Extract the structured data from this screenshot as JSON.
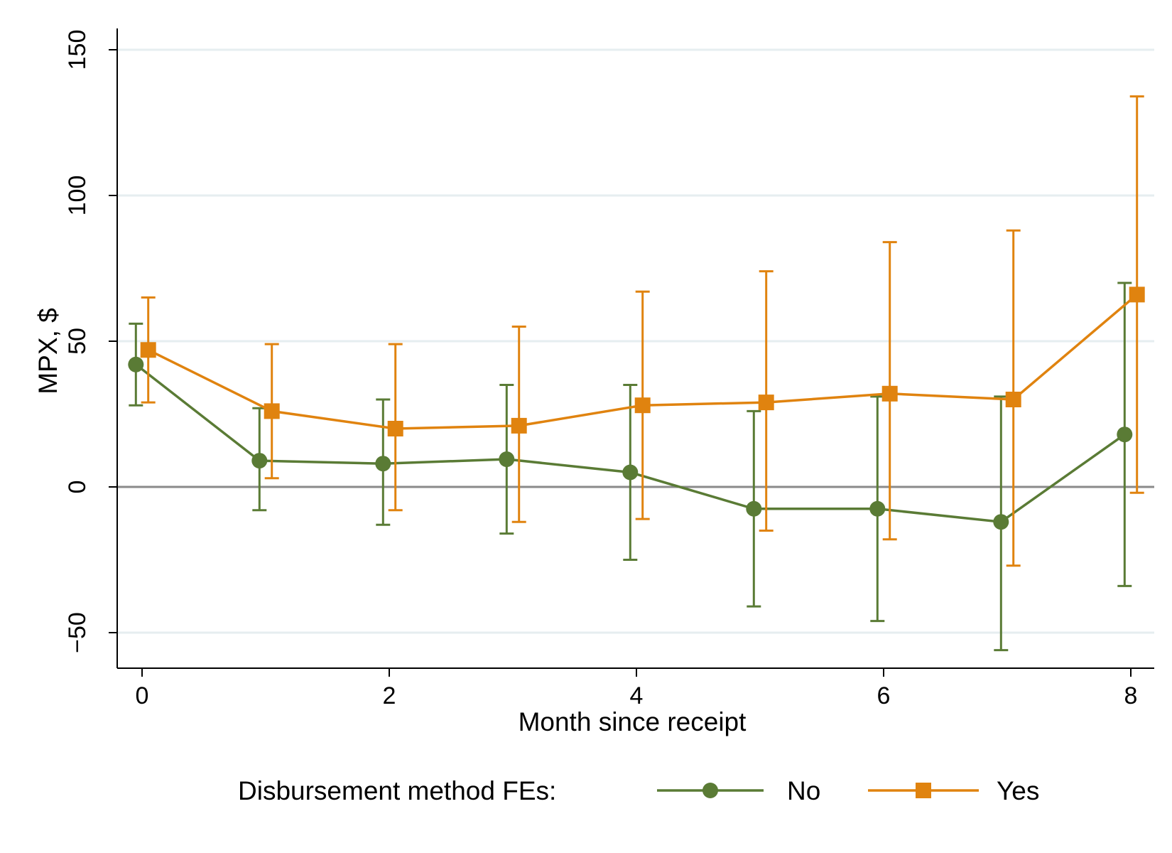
{
  "chart_data": {
    "type": "line",
    "title": "",
    "xlabel": "Month since receipt",
    "ylabel": "MPX, $",
    "xlim": [
      -0.2,
      8.2
    ],
    "ylim": [
      -62,
      157
    ],
    "x_ticks": [
      0,
      2,
      4,
      6,
      8
    ],
    "x_tick_labels": [
      "0",
      "2",
      "4",
      "6",
      "8"
    ],
    "y_ticks": [
      -50,
      0,
      50,
      100,
      150
    ],
    "y_tick_labels": [
      "−50",
      "0",
      "50",
      "100",
      "150"
    ],
    "reference_line_y": 0,
    "grid": true,
    "legend": {
      "title": "Disbursement method FEs:",
      "position": "bottom",
      "entries": [
        "No",
        "Yes"
      ]
    },
    "series": [
      {
        "name": "No",
        "marker": "circle",
        "color": "#5a7b35",
        "x_offset": -0.05,
        "x": [
          0,
          1,
          2,
          3,
          4,
          5,
          6,
          7,
          8
        ],
        "values": [
          42,
          9,
          8,
          9.5,
          5,
          -7.5,
          -7.5,
          -12,
          18
        ],
        "ci_low": [
          28,
          -8,
          -13,
          -16,
          -25,
          -41,
          -46,
          -56,
          -34
        ],
        "ci_high": [
          56,
          27,
          30,
          35,
          35,
          26,
          31,
          31,
          70
        ]
      },
      {
        "name": "Yes",
        "marker": "square",
        "color": "#e0830f",
        "x_offset": 0.05,
        "x": [
          0,
          1,
          2,
          3,
          4,
          5,
          6,
          7,
          8
        ],
        "values": [
          47,
          26,
          20,
          21,
          28,
          29,
          32,
          30,
          66
        ],
        "ci_low": [
          29,
          3,
          -8,
          -12,
          -11,
          -15,
          -18,
          -27,
          -2
        ],
        "ci_high": [
          65,
          49,
          49,
          55,
          67,
          74,
          84,
          88,
          134
        ]
      }
    ]
  }
}
